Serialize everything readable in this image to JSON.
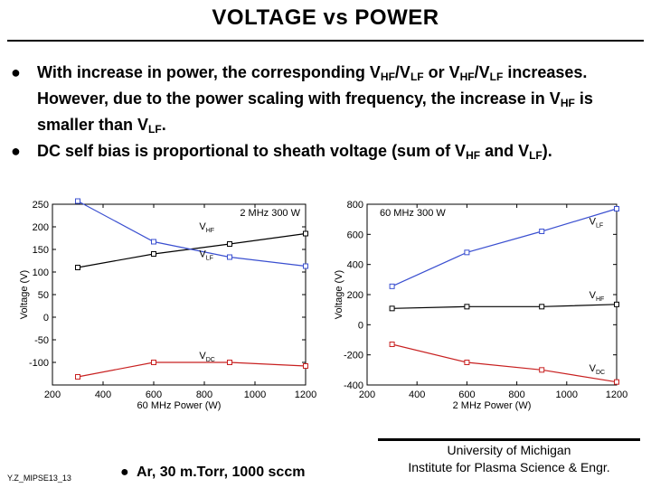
{
  "slide": {
    "title": "VOLTAGE vs POWER",
    "bullets": [
      {
        "segments": [
          {
            "t": "With increase in power, the corresponding V"
          },
          {
            "t": "HF",
            "sub": true
          },
          {
            "t": "/V"
          },
          {
            "t": "LF",
            "sub": true
          },
          {
            "t": " or V"
          },
          {
            "t": "HF",
            "sub": true
          },
          {
            "t": "/V"
          },
          {
            "t": "LF",
            "sub": true
          },
          {
            "t": " increases. However, due to the power scaling with frequency, the increase in V"
          },
          {
            "t": "HF",
            "sub": true
          },
          {
            "t": " is smaller than V"
          },
          {
            "t": "LF",
            "sub": true
          },
          {
            "t": "."
          }
        ]
      },
      {
        "segments": [
          {
            "t": "DC self bias is proportional to sheath voltage (sum of V"
          },
          {
            "t": "HF",
            "sub": true
          },
          {
            "t": " and V"
          },
          {
            "t": "LF",
            "sub": true
          },
          {
            "t": ")."
          }
        ]
      }
    ],
    "footer": {
      "author_code": "Y.Z_MIPSE13_13",
      "conditions": "Ar, 30 m.Torr, 1000 sccm",
      "affiliation_line1": "University of Michigan",
      "affiliation_line2": "Institute for Plasma Science & Engr."
    }
  },
  "chart_data": [
    {
      "type": "line",
      "title": "2 MHz 300 W",
      "xlabel": "60 MHz Power (W)",
      "ylabel": "Voltage (V)",
      "xlim": [
        200,
        1200
      ],
      "ylim": [
        -150,
        250
      ],
      "xticks": [
        200,
        400,
        600,
        800,
        1000,
        1200
      ],
      "yticks": [
        -100,
        -50,
        0,
        50,
        100,
        150,
        200,
        250
      ],
      "x": [
        300,
        600,
        900,
        1200
      ],
      "series": [
        {
          "name": "VHF",
          "label_main": "V",
          "label_sub": "HF",
          "color": "#000000",
          "values": [
            110,
            140,
            162,
            185
          ],
          "label_at": [
            780,
            194
          ]
        },
        {
          "name": "VLF",
          "label_main": "V",
          "label_sub": "LF",
          "color": "#3a4fd0",
          "values": [
            257,
            167,
            133,
            113
          ],
          "label_at": [
            780,
            133
          ]
        },
        {
          "name": "VDC",
          "label_main": "V",
          "label_sub": "DC",
          "color": "#c82020",
          "values": [
            -132,
            -100,
            -100,
            -108
          ],
          "label_at": [
            780,
            -92
          ]
        }
      ]
    },
    {
      "type": "line",
      "title": "60 MHz 300 W",
      "xlabel": "2 MHz Power (W)",
      "ylabel": "Voltage (V)",
      "xlim": [
        200,
        1200
      ],
      "ylim": [
        -400,
        800
      ],
      "xticks": [
        200,
        400,
        600,
        800,
        1000,
        1200
      ],
      "yticks": [
        -400,
        -200,
        0,
        200,
        400,
        600,
        800
      ],
      "x": [
        300,
        600,
        900,
        1200
      ],
      "series": [
        {
          "name": "VLF",
          "label_main": "V",
          "label_sub": "LF",
          "color": "#3a4fd0",
          "values": [
            255,
            480,
            620,
            770
          ],
          "label_at": [
            1090,
            665
          ]
        },
        {
          "name": "VHF",
          "label_main": "V",
          "label_sub": "HF",
          "color": "#000000",
          "values": [
            108,
            120,
            120,
            135
          ],
          "label_at": [
            1090,
            175
          ]
        },
        {
          "name": "VDC",
          "label_main": "V",
          "label_sub": "DC",
          "color": "#c82020",
          "values": [
            -130,
            -250,
            -300,
            -380
          ],
          "label_at": [
            1090,
            -310
          ]
        }
      ]
    }
  ]
}
